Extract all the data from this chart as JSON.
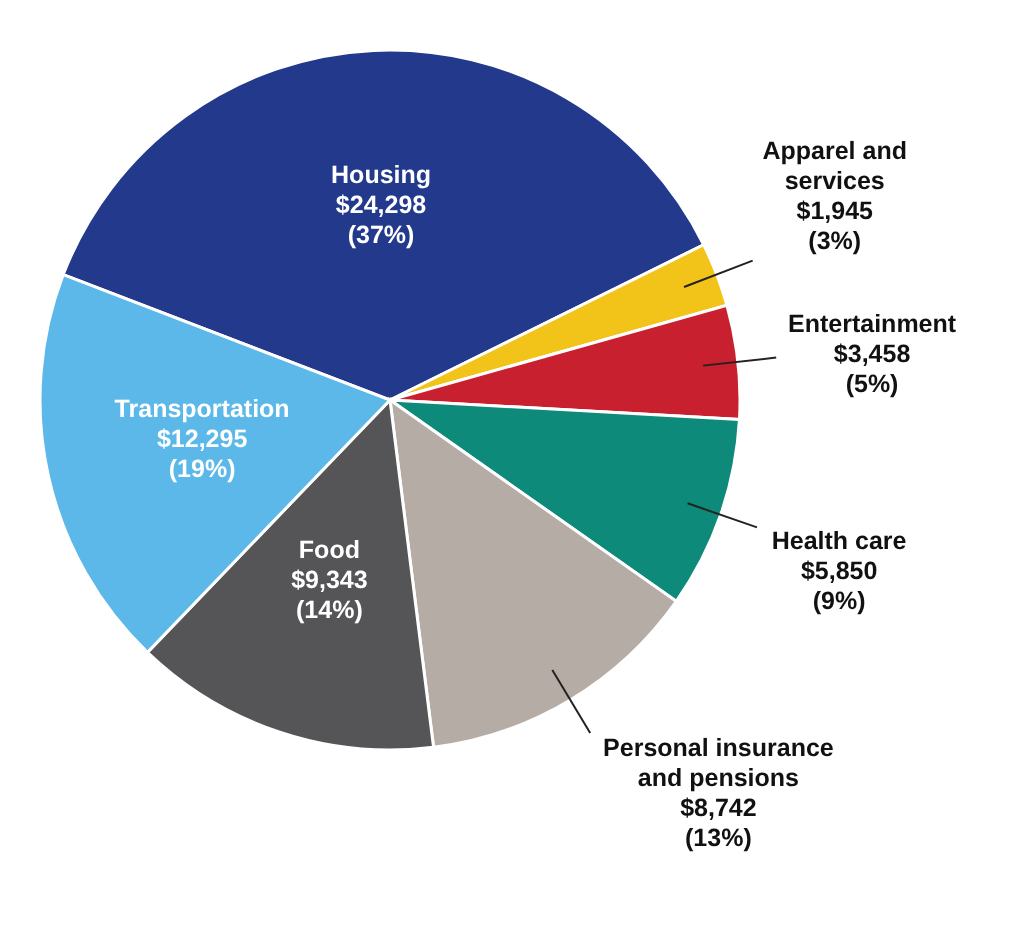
{
  "chart_data": {
    "type": "pie",
    "categories": [
      "Housing",
      "Apparel and services",
      "Entertainment",
      "Health care",
      "Personal insurance and pensions",
      "Food",
      "Transportation"
    ],
    "values": [
      24298,
      1945,
      3458,
      5850,
      8742,
      9343,
      12295
    ],
    "colors": [
      "#22398c",
      "#f2c318",
      "#c8202f",
      "#0e8a7a",
      "#b5aca5",
      "#555557",
      "#5bb8e8"
    ],
    "value_labels": [
      "$24,298 (37%)",
      "$1,945 (3%)",
      "$3,458 (5%)",
      "$5,850 (9%)",
      "$8,742 (13%)",
      "$9,343 (14%)",
      "$12,295 (19%)"
    ]
  }
}
